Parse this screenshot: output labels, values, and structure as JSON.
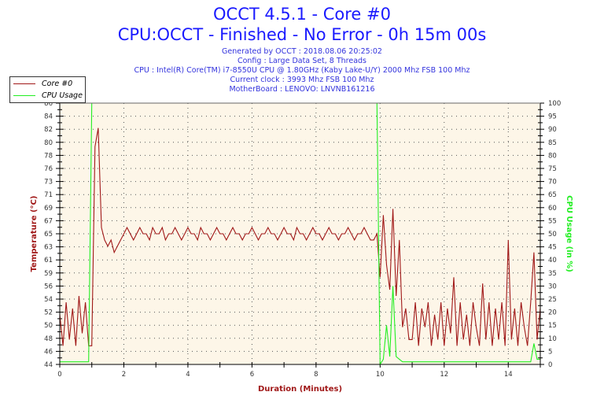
{
  "header": {
    "title": "OCCT 4.5.1 - Core #0",
    "subtitle": "CPU:OCCT - Finished - No Error - 0h 15m 00s",
    "info": [
      "Generated by OCCT : 2018.08.06 20:25:02",
      "Config : Large Data Set, 8 Threads",
      "CPU : Intel(R) Core(TM) i7-8550U CPU @ 1.80GHz (Kaby Lake-U/Y) 2000 Mhz FSB 100 Mhz",
      "Current clock : 3993 Mhz FSB 100 Mhz",
      "MotherBoard : LENOVO: LNVNB161216"
    ]
  },
  "colors": {
    "temp": "#a01818",
    "cpu": "#22ee22",
    "plot_bg": "#fdf6e8",
    "title": "#1a1aff"
  },
  "chart_data": {
    "type": "line",
    "xlabel": "Duration (Minutes)",
    "ylabel": "Temperature (°C)",
    "y2label": "CPU Usage (in %)",
    "xlim": [
      0,
      15
    ],
    "ylim": [
      44,
      86
    ],
    "y2lim": [
      0,
      100
    ],
    "grid": true,
    "legend_placement": "top-left",
    "x_ticks": [
      "0",
      "2",
      "4",
      "6",
      "8",
      "10",
      "12",
      "14"
    ],
    "y_ticks": [
      "44",
      "46",
      "48",
      "50",
      "52",
      "54",
      "56",
      "59",
      "61",
      "63",
      "65",
      "67",
      "69",
      "71",
      "73",
      "76",
      "78",
      "80",
      "82",
      "84",
      "86"
    ],
    "y2_ticks": [
      "0",
      "5",
      "10",
      "15",
      "20",
      "25",
      "30",
      "35",
      "40",
      "45",
      "50",
      "55",
      "60",
      "65",
      "70",
      "75",
      "80",
      "85",
      "90",
      "95",
      "100"
    ],
    "x_start": 0,
    "x_step": 0.1,
    "series": [
      {
        "name": "Core #0",
        "axis": "left",
        "values": [
          52,
          47,
          54,
          48,
          53,
          47,
          55,
          49,
          54,
          47,
          47,
          79,
          82,
          66,
          64,
          63,
          64,
          62,
          63,
          64,
          65,
          66,
          65,
          64,
          65,
          66,
          65,
          65,
          64,
          66,
          65,
          65,
          66,
          64,
          65,
          65,
          66,
          65,
          64,
          65,
          66,
          65,
          65,
          64,
          66,
          65,
          65,
          64,
          65,
          66,
          65,
          65,
          64,
          65,
          66,
          65,
          65,
          64,
          65,
          65,
          66,
          65,
          64,
          65,
          65,
          66,
          65,
          65,
          64,
          65,
          66,
          65,
          65,
          64,
          66,
          65,
          65,
          64,
          65,
          66,
          65,
          65,
          64,
          65,
          66,
          65,
          65,
          64,
          65,
          65,
          66,
          65,
          64,
          65,
          65,
          66,
          65,
          64,
          64,
          65,
          58,
          68,
          60,
          56,
          69,
          55,
          64,
          50,
          53,
          48,
          48,
          54,
          47,
          53,
          50,
          54,
          47,
          52,
          48,
          54,
          47,
          53,
          49,
          58,
          47,
          54,
          48,
          52,
          47,
          54,
          50,
          47,
          57,
          48,
          54,
          47,
          53,
          48,
          54,
          47,
          64,
          48,
          53,
          47,
          54,
          50,
          47,
          54,
          62,
          48,
          53
        ]
      },
      {
        "name": "CPU Usage",
        "axis": "right",
        "values": [
          1,
          1,
          1,
          1,
          1,
          1,
          1,
          1,
          1,
          1,
          100,
          100,
          100,
          100,
          100,
          100,
          100,
          100,
          100,
          100,
          100,
          100,
          100,
          100,
          100,
          100,
          100,
          100,
          100,
          100,
          100,
          100,
          100,
          100,
          100,
          100,
          100,
          100,
          100,
          100,
          100,
          100,
          100,
          100,
          100,
          100,
          100,
          100,
          100,
          100,
          100,
          100,
          100,
          100,
          100,
          100,
          100,
          100,
          100,
          100,
          100,
          100,
          100,
          100,
          100,
          100,
          100,
          100,
          100,
          100,
          100,
          100,
          100,
          100,
          100,
          100,
          100,
          100,
          100,
          100,
          100,
          100,
          100,
          100,
          100,
          100,
          100,
          100,
          100,
          100,
          100,
          100,
          100,
          100,
          100,
          100,
          100,
          100,
          100,
          100,
          0,
          2,
          15,
          3,
          30,
          3,
          2,
          1,
          1,
          1,
          1,
          1,
          1,
          1,
          1,
          1,
          1,
          1,
          1,
          1,
          1,
          1,
          1,
          1,
          1,
          1,
          1,
          1,
          1,
          1,
          1,
          1,
          1,
          1,
          1,
          1,
          1,
          1,
          1,
          1,
          1,
          1,
          1,
          1,
          1,
          1,
          1,
          1,
          8,
          2,
          2
        ]
      }
    ]
  }
}
